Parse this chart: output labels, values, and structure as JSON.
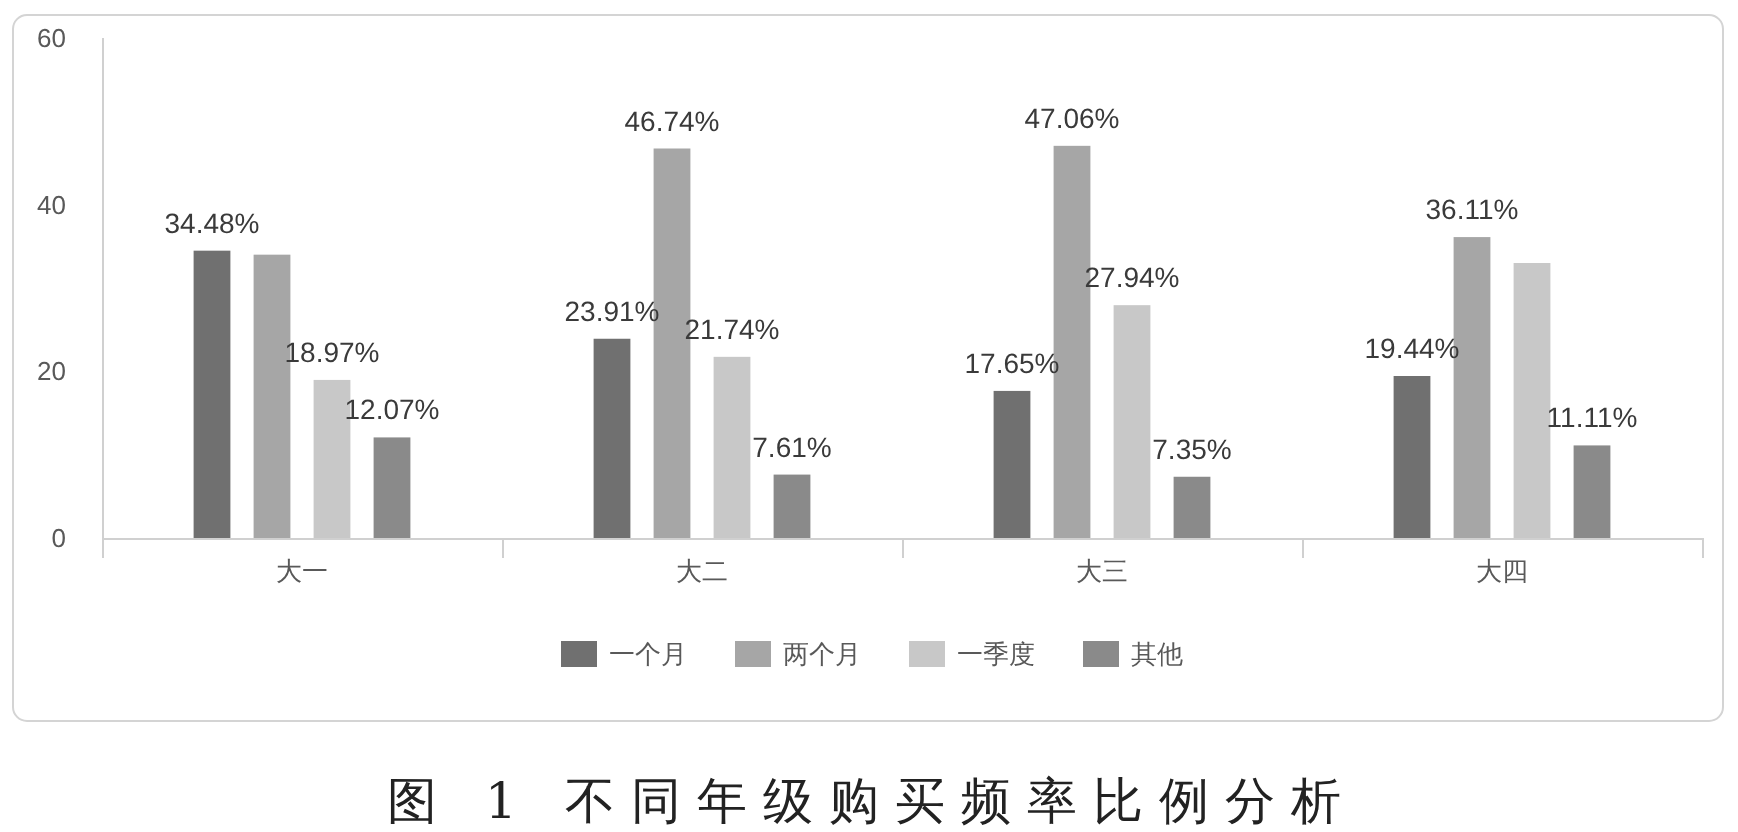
{
  "chart_data": {
    "type": "bar",
    "title": "图 1 不同年级购买频率比例分析",
    "categories": [
      "大一",
      "大二",
      "大三",
      "大四"
    ],
    "series": [
      {
        "name": "一个月",
        "color": "#707070",
        "values": [
          34.48,
          23.91,
          17.65,
          19.44
        ],
        "value_labels": [
          "34.48%",
          "23.91%",
          "17.65%",
          "19.44%"
        ]
      },
      {
        "name": "两个月",
        "color": "#a6a6a6",
        "values": [
          34,
          46.74,
          47.06,
          36.11
        ],
        "value_labels": [
          null,
          "46.74%",
          "47.06%",
          "36.11%"
        ]
      },
      {
        "name": "一季度",
        "color": "#c8c8c8",
        "values": [
          18.97,
          21.74,
          27.94,
          33
        ],
        "value_labels": [
          "18.97%",
          "21.74%",
          "27.94%",
          null
        ]
      },
      {
        "name": "其他",
        "color": "#8a8a8a",
        "values": [
          12.07,
          7.61,
          7.35,
          11.11
        ],
        "value_labels": [
          "12.07%",
          "7.61%",
          "7.35%",
          "11.11%"
        ]
      }
    ],
    "ylim": [
      0,
      60
    ],
    "yticks": [
      0,
      20,
      40,
      60
    ],
    "legend": "bottom"
  }
}
